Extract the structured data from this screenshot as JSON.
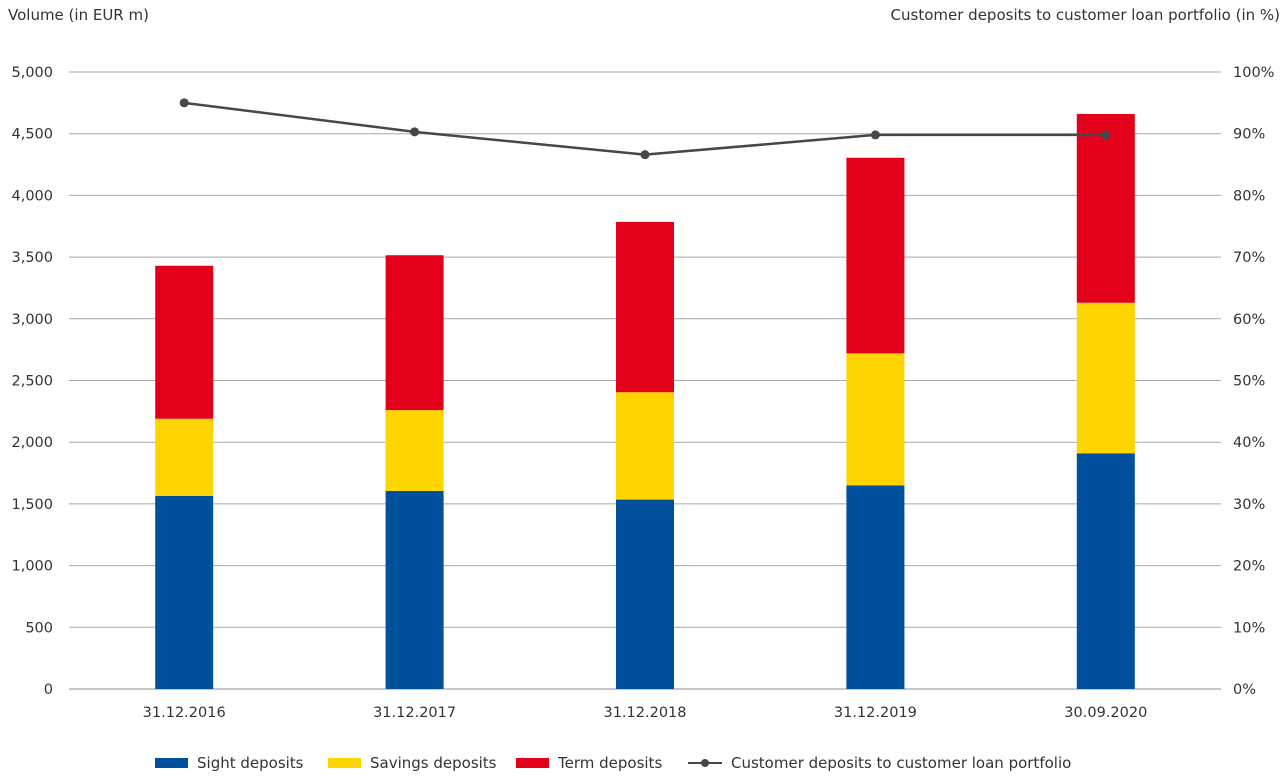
{
  "colors": {
    "sight": "#00509b",
    "savings": "#ffd500",
    "term": "#e2001a",
    "ratio": "#474747",
    "grid": "#a8a8a8"
  },
  "chart_data": {
    "type": "bar",
    "stacked": true,
    "left_axis_title": "Volume (in EUR m)",
    "right_axis_title": "Customer deposits to customer loan portfolio (in %)",
    "categories": [
      "31.12.2016",
      "31.12.2017",
      "31.12.2018",
      "31.12.2019",
      "30.09.2020"
    ],
    "ylim": [
      0,
      5000
    ],
    "y_ticks": [
      "0",
      "500",
      "1,000",
      "1,500",
      "2,000",
      "2,500",
      "3,000",
      "3,500",
      "4,000",
      "4,500",
      "5,000"
    ],
    "y2lim": [
      0,
      100
    ],
    "y2_ticks": [
      "0%",
      "10%",
      "20%",
      "30%",
      "40%",
      "50%",
      "60%",
      "70%",
      "80%",
      "90%",
      "100%"
    ],
    "grid": true,
    "legend_position": "bottom",
    "series": [
      {
        "name": "Sight deposits",
        "type": "bar",
        "values": [
          1565,
          1605,
          1535,
          1650,
          1910
        ]
      },
      {
        "name": "Savings deposits",
        "type": "bar",
        "values": [
          625,
          655,
          870,
          1070,
          1220
        ]
      },
      {
        "name": "Term deposits",
        "type": "bar",
        "values": [
          1240,
          1255,
          1380,
          1585,
          1530
        ]
      },
      {
        "name": "Customer deposits to customer loan portfolio",
        "type": "line",
        "axis": "right",
        "values": [
          95,
          90.3,
          86.6,
          89.8,
          89.8
        ]
      }
    ]
  }
}
